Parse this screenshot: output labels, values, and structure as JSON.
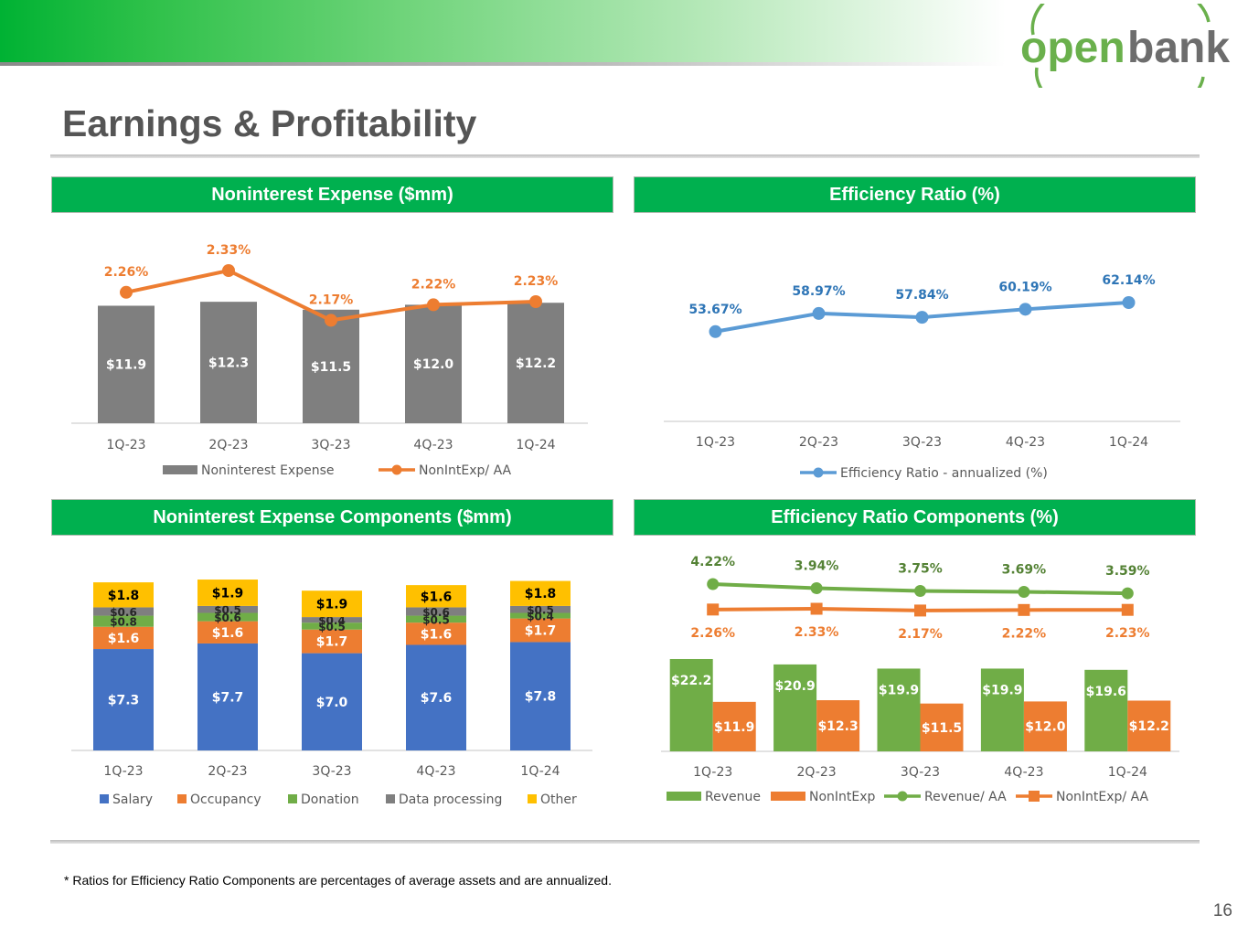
{
  "brand": {
    "logo_text_1": "open",
    "logo_text_2": "bank",
    "green": "#6ab04c",
    "gray": "#6d6d6d"
  },
  "page": {
    "title": "Earnings & Profitability",
    "footnote": "* Ratios for Efficiency Ratio Components are percentages of average assets and are annualized.",
    "page_number": "16"
  },
  "panels": {
    "p1": "Noninterest Expense ($mm)",
    "p2": "Efficiency Ratio (%)",
    "p3": "Noninterest Expense Components ($mm)",
    "p4": "Efficiency Ratio Components (%)"
  },
  "chart_data": [
    {
      "id": "noninterest-expense",
      "type": "bar",
      "title": "Noninterest Expense ($mm)",
      "categories": [
        "1Q-23",
        "2Q-23",
        "3Q-23",
        "4Q-23",
        "1Q-24"
      ],
      "series": [
        {
          "name": "Noninterest Expense",
          "kind": "bar",
          "color": "#7f7f7f",
          "values": [
            11.9,
            12.3,
            11.5,
            12.0,
            12.2
          ],
          "labels": [
            "$11.9",
            "$12.3",
            "$11.5",
            "$12.0",
            "$12.2"
          ]
        },
        {
          "name": "NonIntExp/ AA",
          "kind": "line",
          "color": "#ed7d31",
          "values": [
            2.26,
            2.33,
            2.17,
            2.22,
            2.23
          ],
          "labels": [
            "2.26%",
            "2.33%",
            "2.17%",
            "2.22%",
            "2.23%"
          ]
        }
      ],
      "legend_position": "bottom"
    },
    {
      "id": "efficiency-ratio",
      "type": "line",
      "title": "Efficiency Ratio (%)",
      "categories": [
        "1Q-23",
        "2Q-23",
        "3Q-23",
        "4Q-23",
        "1Q-24"
      ],
      "series": [
        {
          "name": "Efficiency Ratio - annualized (%)",
          "kind": "line",
          "color": "#5b9bd5",
          "values": [
            53.67,
            58.97,
            57.84,
            60.19,
            62.14
          ],
          "labels": [
            "53.67%",
            "58.97%",
            "57.84%",
            "60.19%",
            "62.14%"
          ]
        }
      ],
      "legend_position": "bottom"
    },
    {
      "id": "expense-components",
      "type": "bar",
      "stacked": true,
      "title": "Noninterest Expense Components ($mm)",
      "categories": [
        "1Q-23",
        "2Q-23",
        "3Q-23",
        "4Q-23",
        "1Q-24"
      ],
      "series": [
        {
          "name": "Salary",
          "color": "#4472c4",
          "values": [
            7.3,
            7.7,
            7.0,
            7.6,
            7.8
          ],
          "labels": [
            "$7.3",
            "$7.7",
            "$7.0",
            "$7.6",
            "$7.8"
          ]
        },
        {
          "name": "Occupancy",
          "color": "#ed7d31",
          "values": [
            1.6,
            1.6,
            1.7,
            1.6,
            1.7
          ],
          "labels": [
            "$1.6",
            "$1.6",
            "$1.7",
            "$1.6",
            "$1.7"
          ]
        },
        {
          "name": "Donation",
          "color": "#70ad47",
          "values": [
            0.8,
            0.6,
            0.5,
            0.5,
            0.4
          ],
          "labels": [
            "$0.8",
            "$0.6",
            "$0.5",
            "$0.5",
            "$0.4"
          ]
        },
        {
          "name": "Data processing",
          "color": "#7f7f7f",
          "values": [
            0.6,
            0.5,
            0.4,
            0.6,
            0.5
          ],
          "labels": [
            "$0.6",
            "$0.5",
            "$0.4",
            "$0.6",
            "$0.5"
          ]
        },
        {
          "name": "Other",
          "color": "#ffc000",
          "values": [
            1.8,
            1.9,
            1.9,
            1.6,
            1.8
          ],
          "labels": [
            "$1.8",
            "$1.9",
            "$1.9",
            "$1.6",
            "$1.8"
          ]
        }
      ],
      "legend_position": "bottom"
    },
    {
      "id": "efficiency-components",
      "type": "bar",
      "title": "Efficiency Ratio Components (%)",
      "categories": [
        "1Q-23",
        "2Q-23",
        "3Q-23",
        "4Q-23",
        "1Q-24"
      ],
      "series": [
        {
          "name": "Revenue",
          "kind": "bar",
          "color": "#70ad47",
          "values": [
            22.2,
            20.9,
            19.9,
            19.9,
            19.6
          ],
          "labels": [
            "$22.2",
            "$20.9",
            "$19.9",
            "$19.9",
            "$19.6"
          ]
        },
        {
          "name": "NonIntExp",
          "kind": "bar",
          "color": "#ed7d31",
          "values": [
            11.9,
            12.3,
            11.5,
            12.0,
            12.2
          ],
          "labels": [
            "$11.9",
            "$12.3",
            "$11.5",
            "$12.0",
            "$12.2"
          ]
        },
        {
          "name": "Revenue/ AA",
          "kind": "line",
          "color": "#70ad47",
          "values": [
            4.22,
            3.94,
            3.75,
            3.69,
            3.59
          ],
          "labels": [
            "4.22%",
            "3.94%",
            "3.75%",
            "3.69%",
            "3.59%"
          ]
        },
        {
          "name": "NonIntExp/ AA",
          "kind": "line",
          "color": "#ed7d31",
          "values": [
            2.26,
            2.33,
            2.17,
            2.22,
            2.23
          ],
          "labels": [
            "2.26%",
            "2.33%",
            "2.17%",
            "2.22%",
            "2.23%"
          ]
        }
      ],
      "legend_position": "bottom"
    }
  ]
}
